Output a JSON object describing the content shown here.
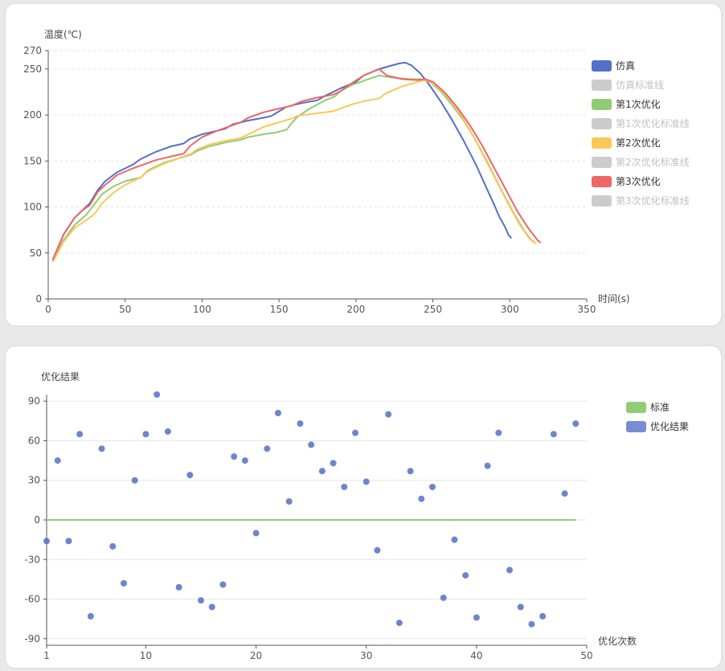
{
  "chart_data": [
    {
      "type": "line",
      "title": "",
      "xlabel": "时间(s)",
      "ylabel": "温度(℃)",
      "xlim": [
        0,
        350
      ],
      "ylim": [
        0,
        270
      ],
      "x_ticks": [
        0,
        50,
        100,
        150,
        200,
        250,
        300,
        350
      ],
      "y_ticks": [
        0,
        50,
        100,
        150,
        200,
        250,
        270
      ],
      "grid": "horizontal dashed",
      "legend_position": "right",
      "series": [
        {
          "name": "仿真",
          "color": "#5470c6",
          "visible": true,
          "points": [
            [
              3,
              42
            ],
            [
              10,
              70
            ],
            [
              17,
              88
            ],
            [
              22,
              96
            ],
            [
              27,
              104
            ],
            [
              32,
              118
            ],
            [
              37,
              128
            ],
            [
              45,
              138
            ],
            [
              55,
              146
            ],
            [
              60,
              152
            ],
            [
              70,
              160
            ],
            [
              80,
              166
            ],
            [
              88,
              169
            ],
            [
              92,
              174
            ],
            [
              100,
              179
            ],
            [
              115,
              185
            ],
            [
              120,
              190
            ],
            [
              130,
              194
            ],
            [
              140,
              197
            ],
            [
              145,
              199
            ],
            [
              150,
              204
            ],
            [
              155,
              209
            ],
            [
              165,
              213
            ],
            [
              175,
              216
            ],
            [
              180,
              221
            ],
            [
              190,
              229
            ],
            [
              200,
              236
            ],
            [
              205,
              243
            ],
            [
              215,
              250
            ],
            [
              228,
              256
            ],
            [
              232,
              257
            ],
            [
              236,
              254
            ],
            [
              242,
              245
            ],
            [
              248,
              232
            ],
            [
              255,
              215
            ],
            [
              262,
              196
            ],
            [
              270,
              172
            ],
            [
              278,
              146
            ],
            [
              285,
              120
            ],
            [
              290,
              102
            ],
            [
              293,
              90
            ],
            [
              297,
              78
            ],
            [
              299,
              70
            ],
            [
              301,
              66
            ]
          ]
        },
        {
          "name": "仿真标准线",
          "color": "#cccccc",
          "visible": false,
          "points": []
        },
        {
          "name": "第1次优化",
          "color": "#91cc75",
          "visible": true,
          "points": [
            [
              3,
              41
            ],
            [
              10,
              64
            ],
            [
              17,
              80
            ],
            [
              25,
              92
            ],
            [
              30,
              103
            ],
            [
              35,
              114
            ],
            [
              42,
              122
            ],
            [
              50,
              128
            ],
            [
              60,
              132
            ],
            [
              65,
              140
            ],
            [
              75,
              148
            ],
            [
              85,
              153
            ],
            [
              93,
              157
            ],
            [
              97,
              161
            ],
            [
              105,
              166
            ],
            [
              115,
              170
            ],
            [
              125,
              173
            ],
            [
              130,
              176
            ],
            [
              140,
              179
            ],
            [
              148,
              181
            ],
            [
              155,
              184
            ],
            [
              158,
              191
            ],
            [
              162,
              198
            ],
            [
              170,
              207
            ],
            [
              180,
              216
            ],
            [
              186,
              220
            ],
            [
              190,
              226
            ],
            [
              198,
              233
            ],
            [
              208,
              239
            ],
            [
              215,
              243
            ],
            [
              222,
              241
            ],
            [
              235,
              239
            ],
            [
              242,
              239
            ],
            [
              248,
              236
            ],
            [
              255,
              226
            ],
            [
              262,
              212
            ],
            [
              270,
              194
            ],
            [
              278,
              172
            ],
            [
              286,
              147
            ],
            [
              294,
              120
            ],
            [
              302,
              95
            ],
            [
              309,
              75
            ],
            [
              314,
              64
            ],
            [
              316,
              62
            ]
          ]
        },
        {
          "name": "第1次优化标准线",
          "color": "#cccccc",
          "visible": false,
          "points": []
        },
        {
          "name": "第2次优化",
          "color": "#fac858",
          "visible": true,
          "points": [
            [
              3,
              40
            ],
            [
              10,
              62
            ],
            [
              17,
              77
            ],
            [
              25,
              86
            ],
            [
              30,
              92
            ],
            [
              35,
              104
            ],
            [
              42,
              115
            ],
            [
              50,
              124
            ],
            [
              60,
              132
            ],
            [
              65,
              139
            ],
            [
              75,
              147
            ],
            [
              85,
              153
            ],
            [
              93,
              158
            ],
            [
              97,
              163
            ],
            [
              105,
              168
            ],
            [
              115,
              172
            ],
            [
              125,
              175
            ],
            [
              130,
              179
            ],
            [
              140,
              187
            ],
            [
              150,
              192
            ],
            [
              158,
              196
            ],
            [
              162,
              199
            ],
            [
              170,
              201
            ],
            [
              180,
              203
            ],
            [
              185,
              204
            ],
            [
              190,
              207
            ],
            [
              198,
              212
            ],
            [
              208,
              216
            ],
            [
              215,
              218
            ],
            [
              220,
              224
            ],
            [
              230,
              231
            ],
            [
              240,
              236
            ],
            [
              245,
              238
            ],
            [
              252,
              232
            ],
            [
              260,
              219
            ],
            [
              268,
              201
            ],
            [
              276,
              178
            ],
            [
              284,
              152
            ],
            [
              292,
              126
            ],
            [
              300,
              100
            ],
            [
              307,
              79
            ],
            [
              313,
              65
            ],
            [
              317,
              60
            ]
          ]
        },
        {
          "name": "第2次优化标准线",
          "color": "#cccccc",
          "visible": false,
          "points": []
        },
        {
          "name": "第3次优化",
          "color": "#ee6666",
          "visible": true,
          "points": [
            [
              3,
              43
            ],
            [
              10,
              70
            ],
            [
              17,
              88
            ],
            [
              22,
              96
            ],
            [
              27,
              102
            ],
            [
              32,
              116
            ],
            [
              37,
              124
            ],
            [
              45,
              135
            ],
            [
              55,
              142
            ],
            [
              60,
              145
            ],
            [
              70,
              151
            ],
            [
              80,
              155
            ],
            [
              88,
              158
            ],
            [
              92,
              166
            ],
            [
              100,
              176
            ],
            [
              110,
              183
            ],
            [
              120,
              189
            ],
            [
              125,
              192
            ],
            [
              130,
              197
            ],
            [
              140,
              203
            ],
            [
              150,
              207
            ],
            [
              158,
              210
            ],
            [
              165,
              215
            ],
            [
              175,
              219
            ],
            [
              185,
              222
            ],
            [
              190,
              226
            ],
            [
              195,
              232
            ],
            [
              205,
              243
            ],
            [
              215,
              250
            ],
            [
              220,
              243
            ],
            [
              230,
              239
            ],
            [
              240,
              238
            ],
            [
              245,
              239
            ],
            [
              250,
              236
            ],
            [
              258,
              224
            ],
            [
              266,
              208
            ],
            [
              274,
              189
            ],
            [
              282,
              167
            ],
            [
              290,
              142
            ],
            [
              298,
              117
            ],
            [
              305,
              95
            ],
            [
              312,
              77
            ],
            [
              318,
              64
            ],
            [
              320,
              61
            ]
          ]
        },
        {
          "name": "第3次优化标准线",
          "color": "#cccccc",
          "visible": false,
          "points": []
        }
      ]
    },
    {
      "type": "scatter",
      "title": "",
      "xlabel": "优化次数",
      "ylabel": "优化结果",
      "xlim": [
        1,
        50
      ],
      "ylim": [
        -95,
        95
      ],
      "x_ticks": [
        1,
        10,
        20,
        30,
        40,
        50
      ],
      "y_ticks": [
        -90,
        -60,
        -30,
        0,
        30,
        60,
        90
      ],
      "grid": "horizontal solid",
      "legend_position": "right",
      "series": [
        {
          "name": "标准",
          "color": "#91cc75",
          "type": "line",
          "points": [
            [
              1,
              0
            ],
            [
              49,
              0
            ]
          ]
        },
        {
          "name": "优化结果",
          "color": "#5470c6",
          "type": "scatter",
          "points": [
            [
              1,
              -16
            ],
            [
              2,
              45
            ],
            [
              3,
              -16
            ],
            [
              4,
              65
            ],
            [
              5,
              -73
            ],
            [
              6,
              54
            ],
            [
              7,
              -20
            ],
            [
              8,
              -48
            ],
            [
              9,
              30
            ],
            [
              10,
              65
            ],
            [
              11,
              95
            ],
            [
              12,
              67
            ],
            [
              13,
              -51
            ],
            [
              14,
              34
            ],
            [
              15,
              -61
            ],
            [
              16,
              -66
            ],
            [
              17,
              -49
            ],
            [
              18,
              48
            ],
            [
              19,
              45
            ],
            [
              20,
              -10
            ],
            [
              21,
              54
            ],
            [
              22,
              81
            ],
            [
              23,
              14
            ],
            [
              24,
              73
            ],
            [
              25,
              57
            ],
            [
              26,
              37
            ],
            [
              27,
              43
            ],
            [
              28,
              25
            ],
            [
              29,
              66
            ],
            [
              30,
              29
            ],
            [
              31,
              -23
            ],
            [
              32,
              80
            ],
            [
              33,
              -78
            ],
            [
              34,
              37
            ],
            [
              35,
              16
            ],
            [
              36,
              25
            ],
            [
              37,
              -59
            ],
            [
              38,
              -15
            ],
            [
              39,
              -42
            ],
            [
              40,
              -74
            ],
            [
              41,
              41
            ],
            [
              42,
              66
            ],
            [
              43,
              -38
            ],
            [
              44,
              -66
            ],
            [
              45,
              -79
            ],
            [
              46,
              -73
            ],
            [
              47,
              65
            ],
            [
              48,
              20
            ],
            [
              49,
              73
            ]
          ]
        }
      ]
    }
  ]
}
